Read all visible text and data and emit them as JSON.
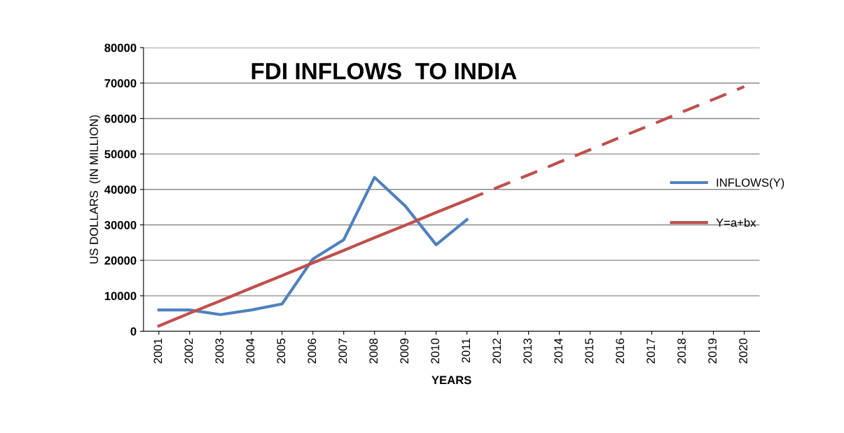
{
  "chart_data": {
    "type": "line",
    "title": "FDI INFLOWS  TO INDIA",
    "xlabel": "YEARS",
    "ylabel": "US DOLLARS  (IN MILLION)",
    "categories": [
      "2001",
      "2002",
      "2003",
      "2004",
      "2005",
      "2006",
      "2007",
      "2008",
      "2009",
      "2010",
      "2011",
      "2012",
      "2013",
      "2014",
      "2015",
      "2016",
      "2017",
      "2018",
      "2019",
      "2020"
    ],
    "series": [
      {
        "name": "INFLOWS(Y)",
        "color": "#4f81bd",
        "values": [
          6000,
          6000,
          4700,
          6000,
          7700,
          20400,
          25800,
          43400,
          35300,
          24400,
          31500,
          null,
          null,
          null,
          null,
          null,
          null,
          null,
          null,
          null
        ]
      },
      {
        "name": "Y=a+bx",
        "color": "#c0504d",
        "line_style": "solid",
        "values": [
          1500,
          5100,
          8600,
          12200,
          15700,
          19300,
          22800,
          26400,
          29900,
          33500,
          37000,
          null,
          null,
          null,
          null,
          null,
          null,
          null,
          null,
          null
        ]
      },
      {
        "color": "#c0504d",
        "line_style": "dashed",
        "values": [
          null,
          null,
          null,
          null,
          null,
          null,
          null,
          null,
          null,
          null,
          37000,
          40600,
          44100,
          47700,
          51200,
          54800,
          58300,
          61900,
          65400,
          69000
        ]
      }
    ],
    "ylim": [
      0,
      80000
    ],
    "yticks": [
      0,
      10000,
      20000,
      30000,
      40000,
      50000,
      60000,
      70000,
      80000
    ],
    "grid": "y",
    "legend": "right",
    "marker": "none"
  }
}
